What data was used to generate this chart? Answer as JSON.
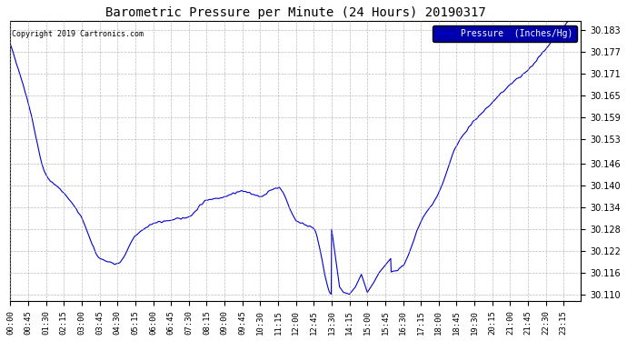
{
  "title": "Barometric Pressure per Minute (24 Hours) 20190317",
  "copyright": "Copyright 2019 Cartronics.com",
  "legend_label": "Pressure  (Inches/Hg)",
  "line_color": "#0000CC",
  "legend_bg": "#0000AA",
  "legend_text_color": "#FFFFFF",
  "background_color": "#FFFFFF",
  "grid_color": "#AAAAAA",
  "title_color": "#000000",
  "ylim": [
    30.108,
    30.1855
  ],
  "yticks": [
    30.11,
    30.116,
    30.122,
    30.128,
    30.134,
    30.14,
    30.146,
    30.153,
    30.159,
    30.165,
    30.171,
    30.177,
    30.183
  ],
  "xtick_labels": [
    "00:00",
    "00:45",
    "01:30",
    "02:15",
    "03:00",
    "03:45",
    "04:30",
    "05:15",
    "06:00",
    "06:45",
    "07:30",
    "08:15",
    "09:00",
    "09:45",
    "10:30",
    "11:15",
    "12:00",
    "12:45",
    "13:30",
    "14:15",
    "15:00",
    "15:45",
    "16:30",
    "17:15",
    "18:00",
    "18:45",
    "19:30",
    "20:15",
    "21:00",
    "21:45",
    "22:30",
    "23:15"
  ],
  "keyframe_x": [
    0,
    45,
    90,
    135,
    180,
    225,
    270,
    315,
    360,
    405,
    450,
    495,
    540,
    585,
    630,
    675,
    720,
    765,
    810,
    855,
    900,
    945,
    990,
    1035,
    1080,
    1125,
    1170,
    1215,
    1260,
    1305,
    1350,
    1395
  ],
  "keyframe_y": [
    30.179,
    30.163,
    30.143,
    30.138,
    30.131,
    30.12,
    30.1185,
    30.126,
    30.1295,
    30.1305,
    30.1315,
    30.136,
    30.137,
    30.1385,
    30.137,
    30.1385,
    30.1305,
    30.128,
    30.11,
    30.1105,
    30.1105,
    30.115,
    30.118,
    30.13,
    30.138,
    30.151,
    30.158,
    30.163,
    30.168,
    30.172,
    30.178,
    30.184
  ]
}
